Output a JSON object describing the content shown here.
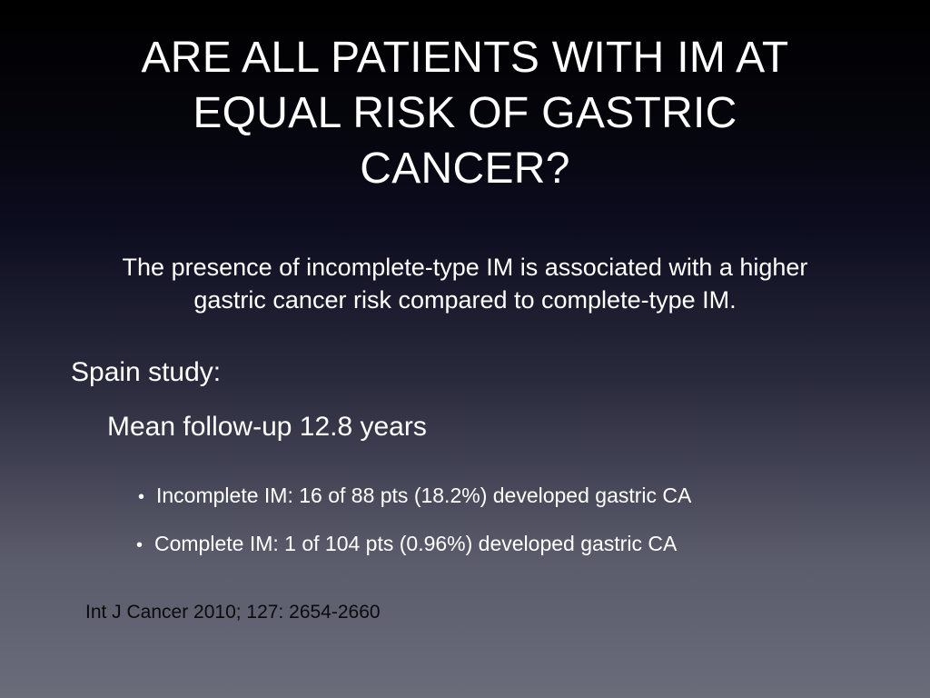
{
  "title": {
    "lines": [
      "ARE ALL PATIENTS WITH IM AT",
      "EQUAL RISK OF GASTRIC",
      "CANCER?"
    ]
  },
  "intro": {
    "lines": [
      "The presence of incomplete-type IM is associated with a higher",
      "gastric cancer risk compared to complete-type IM."
    ]
  },
  "study": {
    "label": "Spain study:",
    "followup": "Mean follow-up 12.8 years",
    "bullets": [
      "Incomplete IM: 16 of 88 pts (18.2%) developed gastric CA",
      "Complete IM: 1 of 104 pts (0.96%) developed gastric CA"
    ]
  },
  "citation": "Int J Cancer 2010; 127: 2654-2660",
  "colors": {
    "text": "#ffffff",
    "citation": "#0a0a0a",
    "background_top": "#000000",
    "background_bottom": "#6b6c7a"
  }
}
